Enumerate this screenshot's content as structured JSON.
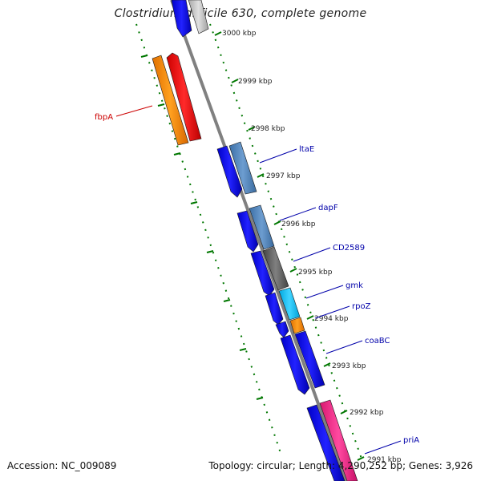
{
  "title": "Clostridium difficile 630, complete genome",
  "footer": {
    "accession_label": "Accession:",
    "accession": "NC_009089",
    "topology_label": "Topology:",
    "topology": "circular",
    "length_label": "Length:",
    "length": "4,290,252 bp",
    "genes_label": "Genes:",
    "genes": "3,926"
  },
  "colors": {
    "backbone": "#808080",
    "tick_green": "#007700",
    "gene_blue": "#0000ee",
    "label_blue": "#0000aa",
    "label_red": "#cc0000"
  },
  "ticks": [
    {
      "label": "3000 kbp"
    },
    {
      "label": "2999 kbp"
    },
    {
      "label": "2998 kbp"
    },
    {
      "label": "2997 kbp"
    },
    {
      "label": "2996 kbp"
    },
    {
      "label": "2995 kbp"
    },
    {
      "label": "2994 kbp"
    },
    {
      "label": "2993 kbp"
    },
    {
      "label": "2992 kbp"
    },
    {
      "label": "2991 kbp"
    }
  ],
  "genes": [
    {
      "name": "fbpA",
      "color": "red"
    },
    {
      "name": "ltaE",
      "color": "blue"
    },
    {
      "name": "dapF",
      "color": "blue"
    },
    {
      "name": "CD2589",
      "color": "blue"
    },
    {
      "name": "gmk",
      "color": "blue"
    },
    {
      "name": "rpoZ",
      "color": "blue"
    },
    {
      "name": "coaBC",
      "color": "blue"
    },
    {
      "name": "priA",
      "color": "blue"
    }
  ]
}
